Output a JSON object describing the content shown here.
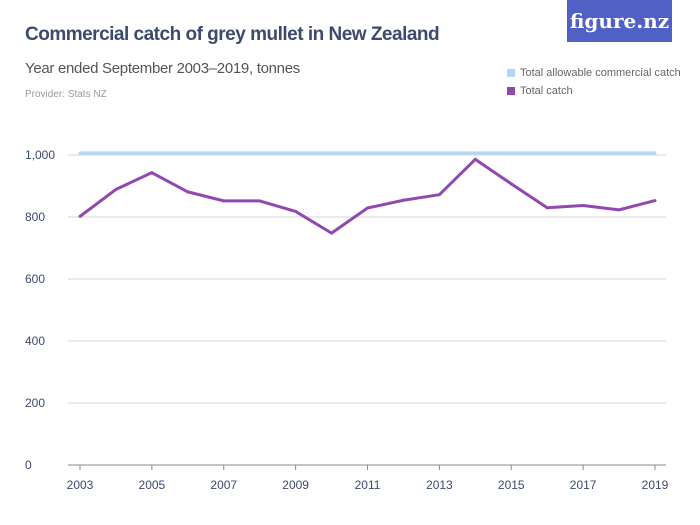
{
  "header": {
    "title": "Commercial catch of grey mullet in New Zealand",
    "subtitle": "Year ended September 2003–2019, tonnes",
    "provider": "Provider: Stats NZ",
    "logo": "figure.nz"
  },
  "chart_data": {
    "type": "line",
    "title": "Commercial catch of grey mullet in New Zealand",
    "subtitle": "Year ended September 2003–2019, tonnes",
    "x": [
      2003,
      2004,
      2005,
      2006,
      2007,
      2008,
      2009,
      2010,
      2011,
      2012,
      2013,
      2014,
      2015,
      2016,
      2017,
      2018,
      2019
    ],
    "xticks": [
      "2003",
      "2005",
      "2007",
      "2009",
      "2011",
      "2013",
      "2015",
      "2017",
      "2019"
    ],
    "yticks": [
      "0",
      "200",
      "400",
      "600",
      "800",
      "1,000"
    ],
    "ylim": [
      0,
      1000
    ],
    "grid": true,
    "legend_position": "top-right",
    "series": [
      {
        "name": "Total allowable commercial catch",
        "color": "#b3d7f5",
        "values": [
          1006,
          1006,
          1006,
          1006,
          1006,
          1006,
          1006,
          1006,
          1006,
          1006,
          1006,
          1006,
          1006,
          1006,
          1006,
          1006,
          1006
        ]
      },
      {
        "name": "Total catch",
        "color": "#9149b0",
        "values": [
          802,
          889,
          943,
          881,
          852,
          852,
          818,
          748,
          829,
          854,
          872,
          986,
          907,
          830,
          837,
          823,
          853
        ]
      }
    ]
  }
}
